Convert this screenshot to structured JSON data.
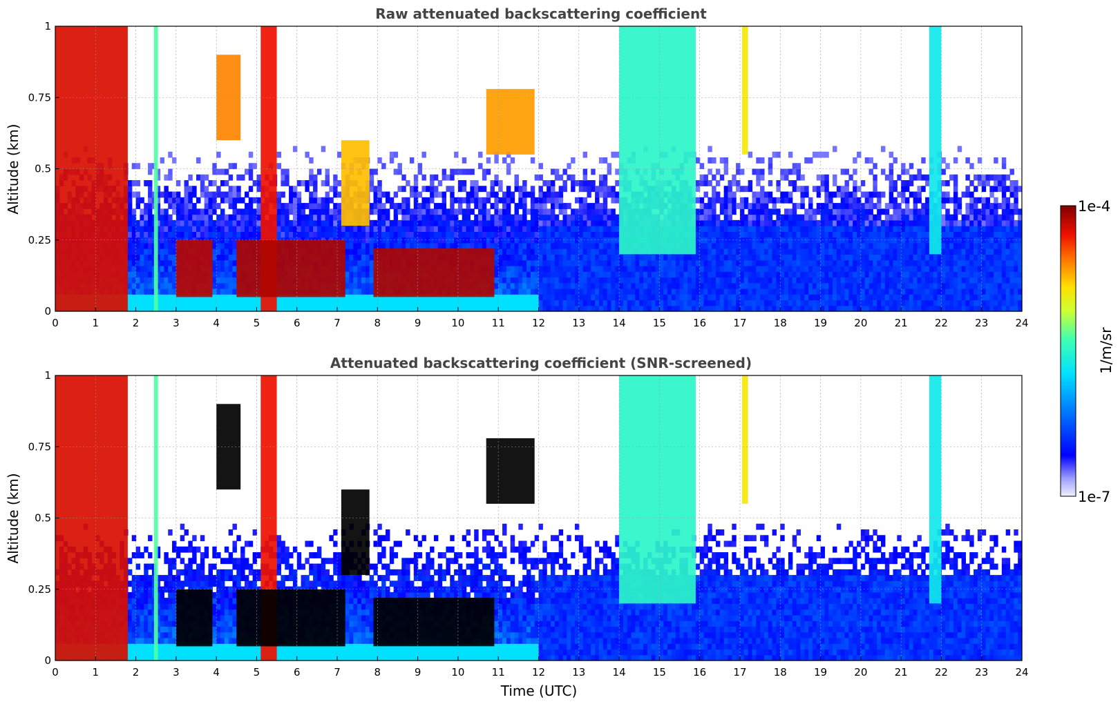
{
  "chart_data": [
    {
      "type": "heatmap",
      "title": "Raw attenuated backscattering coefficient",
      "xlabel": "",
      "ylabel": "Altitude (km)",
      "xlim": [
        0,
        24
      ],
      "ylim": [
        0,
        1
      ],
      "x_ticks": [
        "0",
        "1",
        "2",
        "3",
        "4",
        "5",
        "6",
        "7",
        "8",
        "9",
        "10",
        "11",
        "12",
        "13",
        "14",
        "15",
        "16",
        "17",
        "18",
        "19",
        "20",
        "21",
        "22",
        "23",
        "24"
      ],
      "y_ticks": [
        "0",
        "0.25",
        "0.5",
        "0.75",
        "1"
      ],
      "grid": true,
      "screened": false,
      "features": [
        {
          "type": "column",
          "x": [
            0.0,
            1.8
          ],
          "y": [
            0,
            1
          ],
          "level": 0.92
        },
        {
          "type": "column",
          "x": [
            2.45,
            2.55
          ],
          "y": [
            0,
            1
          ],
          "level": 0.55
        },
        {
          "type": "column",
          "x": [
            5.1,
            5.5
          ],
          "y": [
            0,
            1
          ],
          "level": 0.9
        },
        {
          "type": "layer",
          "x": [
            3.0,
            3.9
          ],
          "y": [
            0.05,
            0.25
          ],
          "level": 0.95
        },
        {
          "type": "layer",
          "x": [
            4.5,
            7.2
          ],
          "y": [
            0.05,
            0.25
          ],
          "level": 0.96
        },
        {
          "type": "layer",
          "x": [
            7.9,
            10.9
          ],
          "y": [
            0.05,
            0.22
          ],
          "level": 0.96
        },
        {
          "type": "blob",
          "x": [
            4.0,
            4.6
          ],
          "y": [
            0.6,
            0.9
          ],
          "level": 0.8
        },
        {
          "type": "blob",
          "x": [
            7.1,
            7.8
          ],
          "y": [
            0.3,
            0.6
          ],
          "level": 0.75
        },
        {
          "type": "blob",
          "x": [
            10.7,
            11.9
          ],
          "y": [
            0.55,
            0.78
          ],
          "level": 0.78
        },
        {
          "type": "column",
          "x": [
            14.0,
            15.9
          ],
          "y": [
            0.2,
            1
          ],
          "level": 0.5
        },
        {
          "type": "column",
          "x": [
            17.05,
            17.2
          ],
          "y": [
            0.55,
            1
          ],
          "level": 0.7
        },
        {
          "type": "column",
          "x": [
            21.7,
            22.0
          ],
          "y": [
            0.2,
            1
          ],
          "level": 0.45
        }
      ]
    },
    {
      "type": "heatmap",
      "title": "Attenuated backscattering coefficient (SNR-screened)",
      "xlabel": "Time (UTC)",
      "ylabel": "Altitude (km)",
      "xlim": [
        0,
        24
      ],
      "ylim": [
        0,
        1
      ],
      "x_ticks": [
        "0",
        "1",
        "2",
        "3",
        "4",
        "5",
        "6",
        "7",
        "8",
        "9",
        "10",
        "11",
        "12",
        "13",
        "14",
        "15",
        "16",
        "17",
        "18",
        "19",
        "20",
        "21",
        "22",
        "23",
        "24"
      ],
      "y_ticks": [
        "0",
        "0.25",
        "0.5",
        "0.75",
        "1"
      ],
      "grid": true,
      "screened": true,
      "features": [
        {
          "type": "column",
          "x": [
            0.0,
            1.8
          ],
          "y": [
            0,
            1
          ],
          "level": 0.92
        },
        {
          "type": "column",
          "x": [
            2.45,
            2.55
          ],
          "y": [
            0,
            1
          ],
          "level": 0.55
        },
        {
          "type": "column",
          "x": [
            5.1,
            5.5
          ],
          "y": [
            0,
            1
          ],
          "level": 0.9
        },
        {
          "type": "saturated-layer",
          "x": [
            3.0,
            3.9
          ],
          "y": [
            0.05,
            0.25
          ],
          "level": 1.0
        },
        {
          "type": "saturated-layer",
          "x": [
            4.5,
            7.2
          ],
          "y": [
            0.05,
            0.25
          ],
          "level": 1.0
        },
        {
          "type": "saturated-layer",
          "x": [
            7.9,
            10.9
          ],
          "y": [
            0.05,
            0.22
          ],
          "level": 1.0
        },
        {
          "type": "blob",
          "x": [
            4.0,
            4.6
          ],
          "y": [
            0.6,
            0.9
          ],
          "level": 1.0
        },
        {
          "type": "blob",
          "x": [
            7.1,
            7.8
          ],
          "y": [
            0.3,
            0.6
          ],
          "level": 1.0
        },
        {
          "type": "blob",
          "x": [
            10.7,
            11.9
          ],
          "y": [
            0.55,
            0.78
          ],
          "level": 1.0
        },
        {
          "type": "column",
          "x": [
            14.0,
            15.9
          ],
          "y": [
            0.2,
            1
          ],
          "level": 0.5
        },
        {
          "type": "column",
          "x": [
            17.05,
            17.2
          ],
          "y": [
            0.55,
            1
          ],
          "level": 0.7
        },
        {
          "type": "column",
          "x": [
            21.7,
            22.0
          ],
          "y": [
            0.2,
            1
          ],
          "level": 0.45
        }
      ]
    }
  ],
  "colorbar": {
    "max_label": "1e-4",
    "min_label": "1e-7",
    "unit_label": "1/m/sr",
    "scale": "log",
    "range": [
      1e-07,
      0.0001
    ]
  }
}
